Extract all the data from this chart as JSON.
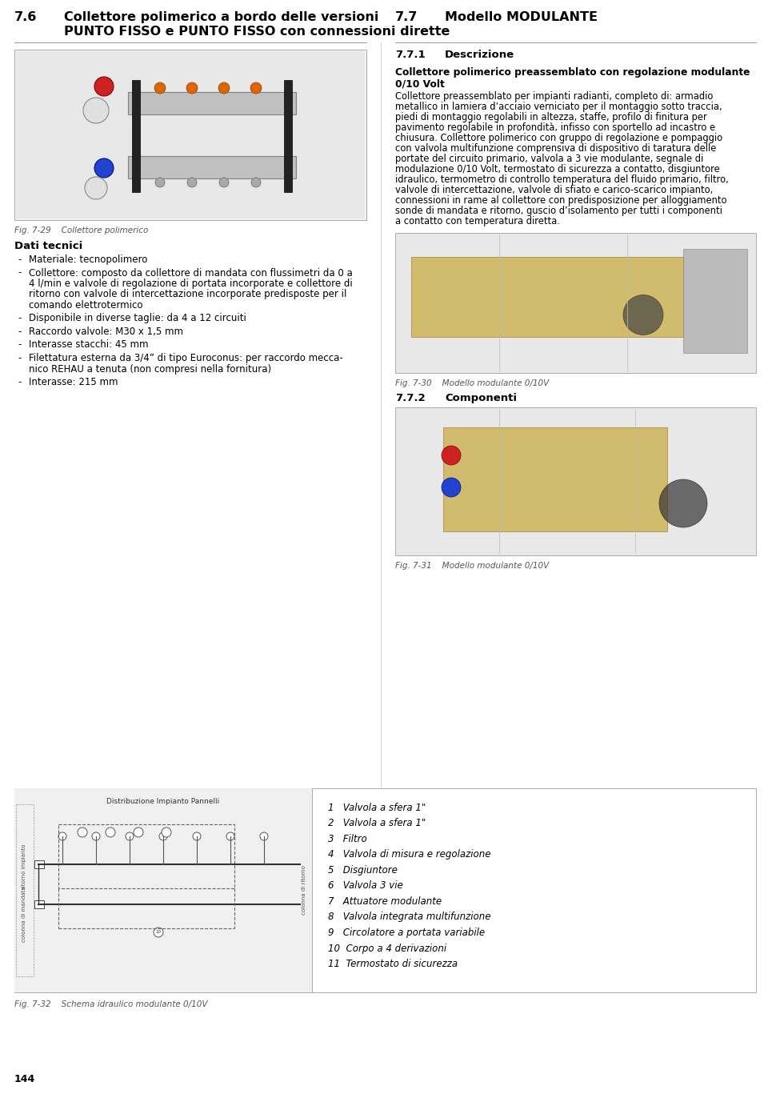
{
  "bg_color": "#ffffff",
  "page_num": "144",
  "section_left_title": "7.6",
  "section_left_line1": "Collettore polimerico a bordo delle versioni",
  "section_left_line2": "PUNTO FISSO e PUNTO FISSO con connessioni dirette",
  "fig_caption_left": "Fig. 7-29    Collettore polimerico",
  "dati_tecnici_title": "Dati tecnici",
  "dati_tecnici_items": [
    [
      "Materiale: tecnopolimero"
    ],
    [
      "Collettore: composto da collettore di mandata con flussimetri da 0 a",
      "4 l/min e valvole di regolazione di portata incorporate e collettore di",
      "ritorno con valvole di intercettazione incorporate predisposte per il",
      "comando elettrotermico"
    ],
    [
      "Disponibile in diverse taglie: da 4 a 12 circuiti"
    ],
    [
      "Raccordo valvole: M30 x 1,5 mm"
    ],
    [
      "Interasse stacchi: 45 mm"
    ],
    [
      "Filettatura esterna da 3/4” di tipo Euroconus: per raccordo mecca-",
      "nico REHAU a tenuta (non compresi nella fornitura)"
    ],
    [
      "Interasse: 215 mm"
    ]
  ],
  "section_right_title": "7.7",
  "section_right_subtitle": "Modello MODULANTE",
  "subsection_right_title": "7.7.1",
  "subsection_right_subtitle": "Descrizione",
  "desc_bold_line1": "Collettore polimerico preassemblato con regolazione modulante",
  "desc_bold_line2": "0/10 Volt",
  "desc_normal_lines": [
    "Collettore preassemblato per impianti radianti, completo di: armadio",
    "metallico in lamiera d’acciaio verniciato per il montaggio sotto traccia,",
    "piedi di montaggio regolabili in altezza, staffe, profilo di finitura per",
    "pavimento regolabile in profondità, infisso con sportello ad incastro e",
    "chiusura. Collettore polimerico con gruppo di regolazione e pompaggio",
    "con valvola multifunzione comprensiva di dispositivo di taratura delle",
    "portate del circuito primario, valvola a 3 vie modulante, segnale di",
    "modulazione 0/10 Volt, termostato di sicurezza a contatto, disgiuntore",
    "idraulico, termometro di controllo temperatura del fluido primario, filtro,",
    "valvole di intercettazione, valvole di sfiato e carico-scarico impianto,",
    "connessioni in rame al collettore con predisposizione per alloggiamento",
    "sonde di mandata e ritorno, guscio d’isolamento per tutti i componenti",
    "a contatto con temperatura diretta."
  ],
  "fig_caption_right_1": "Fig. 7-30    Modello modulante 0/10V",
  "subsection_772_title": "7.7.2",
  "subsection_772_subtitle": "Componenti",
  "fig_caption_right_2": "Fig. 7-31    Modello modulante 0/10V",
  "schema_caption": "Fig. 7-32    Schema idraulico modulante 0/10V",
  "components_list": [
    "1   Valvola a sfera 1\"",
    "2   Valvola a sfera 1\"",
    "3   Filtro",
    "4   Valvola di misura e regolazione",
    "5   Disgiuntore",
    "6   Valvola 3 vie",
    "7   Attuatore modulante",
    "8   Valvola integrata multifunzione",
    "9   Circolatore a portata variabile",
    "10  Corpo a 4 derivazioni",
    "11  Termostato di sicurezza"
  ],
  "font_color": "#000000",
  "italic_color": "#555555",
  "gray_light": "#f2f2f2",
  "border_color": "#aaaaaa"
}
